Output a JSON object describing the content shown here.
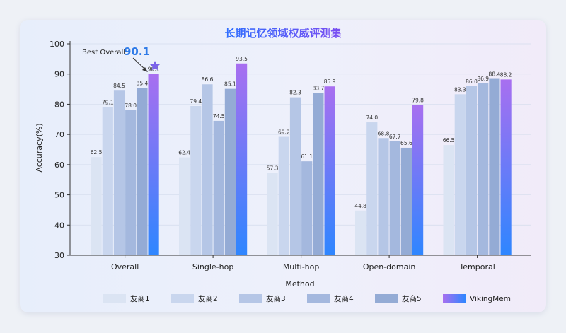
{
  "chart_data": {
    "type": "bar",
    "title": "长期记忆领域权威评测集",
    "xlabel": "Method",
    "ylabel": "Accuracy(%)",
    "ylim": [
      30,
      100
    ],
    "yticks": [
      30,
      40,
      50,
      60,
      70,
      80,
      90,
      100
    ],
    "categories": [
      "Overall",
      "Single-hop",
      "Multi-hop",
      "Open-domain",
      "Temporal"
    ],
    "series": [
      {
        "name": "友商1",
        "values": [
          62.5,
          62.4,
          57.3,
          44.8,
          66.5
        ],
        "color": "#dbe4f3"
      },
      {
        "name": "友商2",
        "values": [
          79.1,
          79.4,
          69.2,
          74.0,
          83.3
        ],
        "color": "#c9d6ee"
      },
      {
        "name": "友商3",
        "values": [
          84.5,
          86.6,
          82.3,
          68.8,
          86.0
        ],
        "color": "#b5c6e6"
      },
      {
        "name": "友商4",
        "values": [
          78.0,
          74.5,
          61.1,
          67.7,
          86.9
        ],
        "color": "#a4b8de"
      },
      {
        "name": "友商5",
        "values": [
          85.4,
          85.1,
          83.7,
          65.6,
          88.4
        ],
        "color": "#94abd5"
      },
      {
        "name": "VikingMem",
        "values": [
          90.1,
          93.5,
          85.9,
          79.8,
          88.2
        ],
        "color": "#a86ff0",
        "color2": "#2e86ff"
      }
    ],
    "annotation": {
      "label": "Best Overall",
      "value": "90.1",
      "category": "Overall",
      "series": "VikingMem"
    }
  }
}
